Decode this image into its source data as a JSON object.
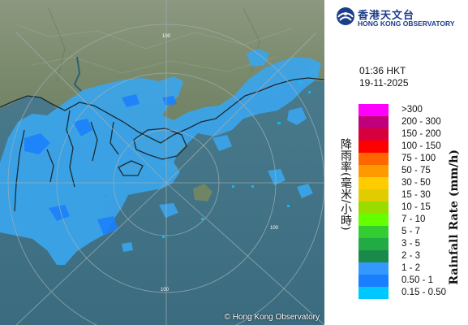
{
  "header": {
    "logo_chinese": "香港天文台",
    "logo_english": "HONG KONG OBSERVATORY"
  },
  "observation": {
    "time": "01:36 HKT",
    "date": "19-11-2025"
  },
  "axis_titles": {
    "chinese": "降雨率(毫米/小時)",
    "english": "Rainfall Rate (mm/h)"
  },
  "legend": [
    {
      "label": ">300",
      "color": "#ff00ff"
    },
    {
      "label": "200 - 300",
      "color": "#c0007a"
    },
    {
      "label": "150 - 200",
      "color": "#d8003c"
    },
    {
      "label": "100 - 150",
      "color": "#ff0000"
    },
    {
      "label": "75 - 100",
      "color": "#ff6600"
    },
    {
      "label": "50 - 75",
      "color": "#ff9900"
    },
    {
      "label": "30 - 50",
      "color": "#ffcc00"
    },
    {
      "label": "15 - 30",
      "color": "#e0cc00"
    },
    {
      "label": "10 - 15",
      "color": "#99dd00"
    },
    {
      "label": "7 - 10",
      "color": "#66ff00"
    },
    {
      "label": "5 - 7",
      "color": "#33cc33"
    },
    {
      "label": "3 - 5",
      "color": "#22aa44"
    },
    {
      "label": "2 - 3",
      "color": "#1a8a4a"
    },
    {
      "label": "1 - 2",
      "color": "#3399ff"
    },
    {
      "label": "0.50 - 1",
      "color": "#1a7fff"
    },
    {
      "label": "0.15 - 0.50",
      "color": "#00c8ff"
    }
  ],
  "map": {
    "copyright": "© Hong Kong Observatory",
    "range_labels": [
      "100",
      "100",
      "100"
    ],
    "rain_color": "#3aa6ee"
  }
}
